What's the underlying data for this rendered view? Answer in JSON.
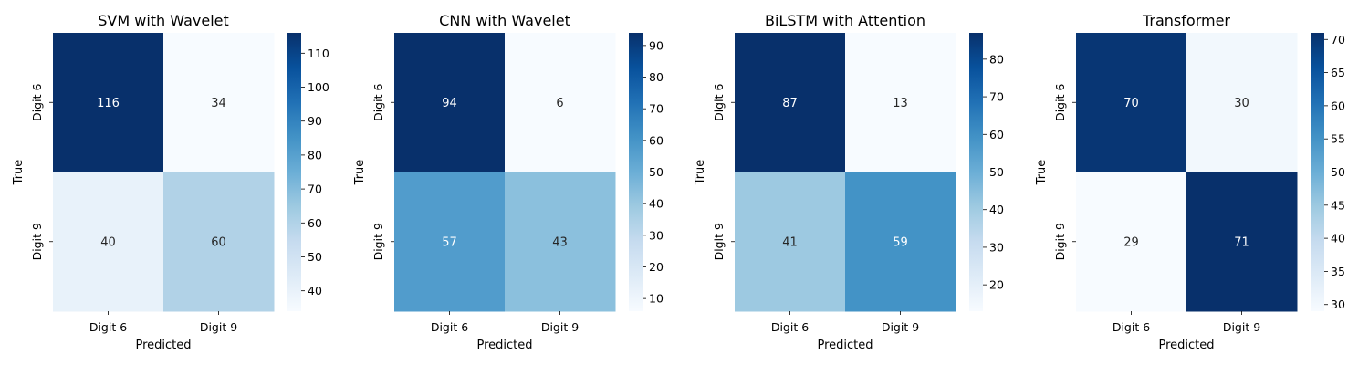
{
  "chart_data": [
    {
      "type": "heatmap",
      "title": "SVM with Wavelet",
      "xlabel": "Predicted",
      "ylabel": "True",
      "x_categories": [
        "Digit 6",
        "Digit 9"
      ],
      "y_categories": [
        "Digit 6",
        "Digit 9"
      ],
      "values": [
        [
          116,
          34
        ],
        [
          40,
          60
        ]
      ],
      "colorbar": {
        "min": 34,
        "max": 116,
        "ticks": [
          40,
          50,
          60,
          70,
          80,
          90,
          100,
          110
        ]
      },
      "colormap": "Blues"
    },
    {
      "type": "heatmap",
      "title": "CNN with Wavelet",
      "xlabel": "Predicted",
      "ylabel": "True",
      "x_categories": [
        "Digit 6",
        "Digit 9"
      ],
      "y_categories": [
        "Digit 6",
        "Digit 9"
      ],
      "values": [
        [
          94,
          6
        ],
        [
          57,
          43
        ]
      ],
      "colorbar": {
        "min": 6,
        "max": 94,
        "ticks": [
          10,
          20,
          30,
          40,
          50,
          60,
          70,
          80,
          90
        ]
      },
      "colormap": "Blues"
    },
    {
      "type": "heatmap",
      "title": "BiLSTM with Attention",
      "xlabel": "Predicted",
      "ylabel": "True",
      "x_categories": [
        "Digit 6",
        "Digit 9"
      ],
      "y_categories": [
        "Digit 6",
        "Digit 9"
      ],
      "values": [
        [
          87,
          13
        ],
        [
          41,
          59
        ]
      ],
      "colorbar": {
        "min": 13,
        "max": 87,
        "ticks": [
          20,
          30,
          40,
          50,
          60,
          70,
          80
        ]
      },
      "colormap": "Blues"
    },
    {
      "type": "heatmap",
      "title": "Transformer",
      "xlabel": "Predicted",
      "ylabel": "True",
      "x_categories": [
        "Digit 6",
        "Digit 9"
      ],
      "y_categories": [
        "Digit 6",
        "Digit 9"
      ],
      "values": [
        [
          70,
          30
        ],
        [
          29,
          71
        ]
      ],
      "colorbar": {
        "min": 29,
        "max": 71,
        "ticks": [
          30,
          35,
          40,
          45,
          50,
          55,
          60,
          65,
          70
        ]
      },
      "colormap": "Blues"
    }
  ]
}
